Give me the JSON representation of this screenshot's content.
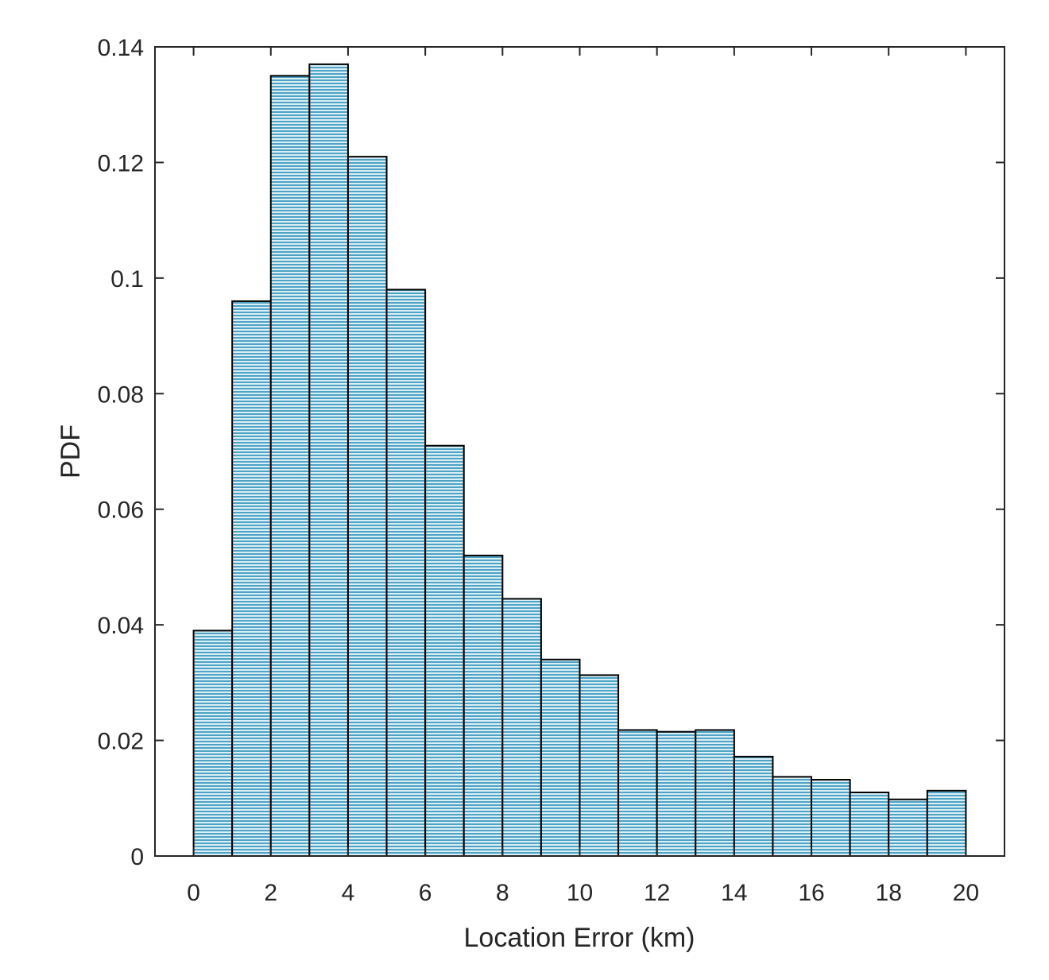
{
  "chart_data": {
    "type": "bar",
    "xlabel": "Location Error (km)",
    "ylabel": "PDF",
    "xlim": [
      -1,
      21
    ],
    "ylim": [
      0,
      0.14
    ],
    "bin_width": 1,
    "x": [
      0.5,
      1.5,
      2.5,
      3.5,
      4.5,
      5.5,
      6.5,
      7.5,
      8.5,
      9.5,
      10.5,
      11.5,
      12.5,
      13.5,
      14.5,
      15.5,
      16.5,
      17.5,
      18.5,
      19.5
    ],
    "values": [
      0.039,
      0.096,
      0.135,
      0.137,
      0.121,
      0.098,
      0.071,
      0.052,
      0.0445,
      0.034,
      0.0313,
      0.0218,
      0.0215,
      0.0218,
      0.0172,
      0.0137,
      0.0132,
      0.011,
      0.0098,
      0.0113
    ],
    "xticks": [
      0,
      2,
      4,
      6,
      8,
      10,
      12,
      14,
      16,
      18,
      20
    ],
    "xtick_labels": [
      "0",
      "2",
      "4",
      "6",
      "8",
      "10",
      "12",
      "14",
      "16",
      "18",
      "20"
    ],
    "yticks": [
      0,
      0.02,
      0.04,
      0.06,
      0.08,
      0.1,
      0.12,
      0.14
    ],
    "ytick_labels": [
      "0",
      "0.02",
      "0.04",
      "0.06",
      "0.08",
      "0.1",
      "0.12",
      "0.14"
    ],
    "grid": false,
    "bar_color": "#4fa3c4",
    "bar_hatch_color": "#d9eef5",
    "edge_color": "#000000"
  }
}
